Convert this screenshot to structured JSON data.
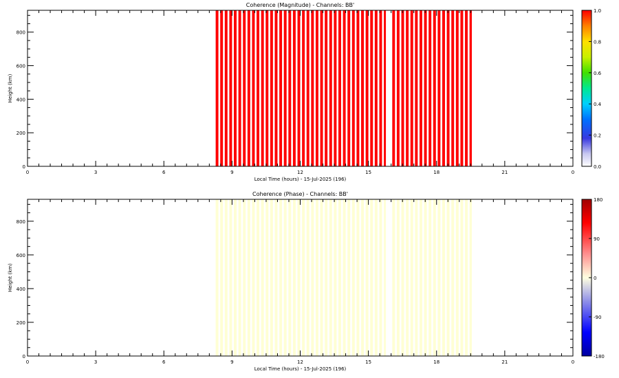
{
  "chart_data": [
    {
      "type": "heatmap",
      "title": "Coherence (Magnitude) - Channels: BB'",
      "xlabel": "Local Time (hours) - 15-Jul-2025 (196)",
      "ylabel": "Height (km)",
      "xlim": [
        0,
        24
      ],
      "ylim": [
        0,
        930
      ],
      "xticks": [
        "0",
        "3",
        "6",
        "9",
        "12",
        "15",
        "18",
        "21",
        "0"
      ],
      "yticks": [
        "0",
        "200",
        "400",
        "600",
        "800"
      ],
      "colorbar_ticks": [
        "0.0",
        "0.2",
        "0.4",
        "0.6",
        "0.8",
        "1.0"
      ],
      "colorbar_range": [
        0,
        1
      ],
      "colormap": "rainbow-white-low",
      "bar_color": "#ff0000",
      "gap_color": "#ffffff",
      "data_ranges_hours": [
        [
          8.28,
          15.83
        ],
        [
          16.05,
          19.62
        ]
      ],
      "sample_interval_hours": 0.2,
      "value": 1.0
    },
    {
      "type": "heatmap",
      "title": "Coherence (Phase) - Channels: BB'",
      "xlabel": "Local Time (hours) - 15-Jul-2025 (196)",
      "ylabel": "Height (km)",
      "xlim": [
        0,
        24
      ],
      "ylim": [
        0,
        930
      ],
      "xticks": [
        "0",
        "3",
        "6",
        "9",
        "12",
        "15",
        "18",
        "21",
        "0"
      ],
      "yticks": [
        "0",
        "200",
        "400",
        "600",
        "800"
      ],
      "colorbar_ticks": [
        "-180",
        "-90",
        "0",
        "90",
        "180"
      ],
      "colorbar_range": [
        -180,
        180
      ],
      "colormap": "blue-white-red",
      "bar_color": "#ffffd4",
      "gap_color": "#ffffff",
      "data_ranges_hours": [
        [
          8.28,
          15.83
        ],
        [
          16.05,
          19.62
        ]
      ],
      "sample_interval_hours": 0.2,
      "value": 0
    }
  ]
}
